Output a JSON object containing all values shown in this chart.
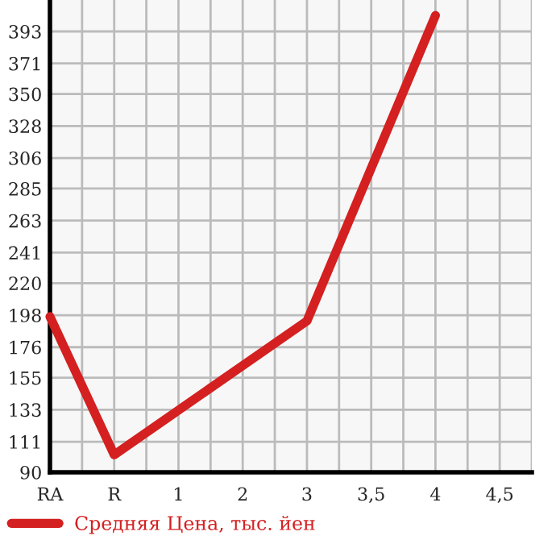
{
  "chart_data": {
    "type": "line",
    "categories": [
      "RA",
      "R",
      "1",
      "2",
      "3",
      "3,5",
      "4",
      "4,5"
    ],
    "series": [
      {
        "name": "Средняя Цена, тыс. йен",
        "color": "#d42020",
        "values": [
          197,
          102,
          null,
          null,
          194,
          null,
          404,
          null
        ]
      }
    ],
    "ylim": [
      90,
      414.6
    ],
    "yticks": [
      90,
      111,
      133,
      155,
      176,
      198,
      220,
      241,
      263,
      285,
      306,
      328,
      350,
      371,
      393
    ],
    "grid": true,
    "legend": "bottom left",
    "marker": "none",
    "line_style": "solid"
  }
}
